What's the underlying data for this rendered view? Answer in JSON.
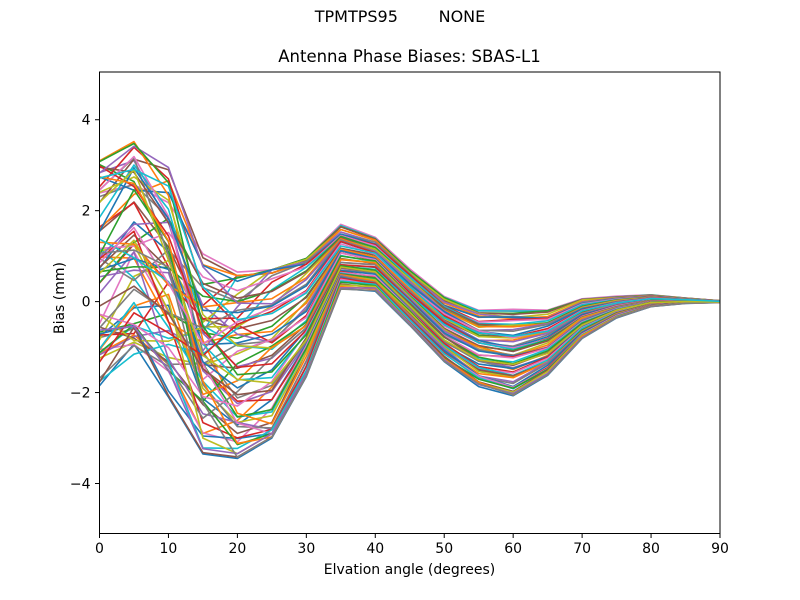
{
  "suptitle": "TPMTPS95        NONE",
  "chart_data": {
    "type": "line",
    "title": "Antenna Phase Biases: SBAS-L1",
    "xlabel": "Elvation angle (degrees)",
    "ylabel": "Bias (mm)",
    "xlim": [
      0,
      90
    ],
    "ylim": [
      -5.1,
      5.05
    ],
    "xticks": [
      0,
      10,
      20,
      30,
      40,
      50,
      60,
      70,
      80,
      90
    ],
    "yticks": [
      -4,
      -2,
      0,
      2,
      4
    ],
    "grid": false,
    "legend": false,
    "x": [
      0,
      5,
      10,
      15,
      20,
      25,
      30,
      35,
      40,
      45,
      50,
      55,
      60,
      65,
      70,
      75,
      80,
      85,
      90
    ],
    "envelope_mean": [
      0.7,
      1.15,
      0.45,
      -1.15,
      -1.4,
      -1.15,
      -0.35,
      0.98,
      0.83,
      0.1,
      -0.6,
      -1.02,
      -1.12,
      -0.9,
      -0.37,
      -0.12,
      0.02,
      0.02,
      0.0
    ],
    "envelope_halfwidth": [
      2.55,
      2.4,
      2.55,
      2.2,
      2.05,
      1.85,
      1.3,
      0.72,
      0.6,
      0.62,
      0.72,
      0.85,
      0.95,
      0.72,
      0.44,
      0.24,
      0.13,
      0.06,
      0.02
    ],
    "anchor_blend": [
      0,
      0,
      0.25,
      0.6,
      0.85,
      0.97,
      1,
      1,
      1,
      1,
      1,
      1,
      1,
      1,
      1,
      1,
      1,
      1,
      1
    ],
    "mix_jitter": [
      0.18,
      0.18,
      0.18,
      0.12,
      0.09,
      0.09,
      0.08,
      0.07,
      0.05,
      0.045,
      0.045,
      0.045,
      0.045,
      0.04,
      0.03,
      0.02,
      0.015,
      0.008,
      0
    ],
    "spread_boost": [
      0,
      0.05,
      0.15,
      0.25,
      0.25,
      0.2,
      0.12,
      0.03,
      0.02,
      0.02,
      0.02,
      0.02,
      0.02,
      0.02,
      0.02,
      0.02,
      0.02,
      0,
      0
    ],
    "n_series": 70,
    "palette": [
      "#1f77b4",
      "#ff7f0e",
      "#2ca02c",
      "#d62728",
      "#9467bd",
      "#8c564b",
      "#e377c2",
      "#7f7f7f",
      "#bcbd22",
      "#17becf"
    ],
    "gen": {
      "perm_a": 9,
      "perm_b": 23,
      "phase_step": 2.399963,
      "omega_base": 0.4,
      "omega_step": 0.28,
      "omega_mod": 7,
      "clamp_stagger": 0.013,
      "clamp_mod": 6,
      "h2_amp": 0.7,
      "h2_phase_mul": 1.7,
      "h2_omega": 2.05
    },
    "line_width": 1.6,
    "axis_color": "#000000"
  }
}
